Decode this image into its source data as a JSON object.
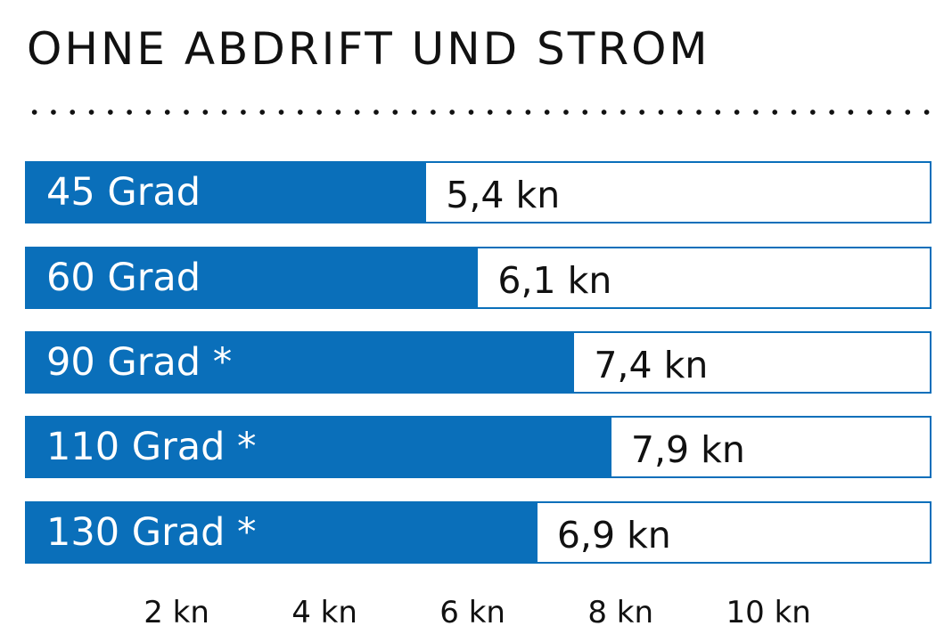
{
  "chart_data": {
    "type": "bar",
    "orientation": "horizontal",
    "title": "OHNE ABDRIFT UND STROM",
    "categories": [
      "45 Grad",
      "60 Grad",
      "90 Grad *",
      "110 Grad *",
      "130 Grad *"
    ],
    "values": [
      5.4,
      6.1,
      7.4,
      7.9,
      6.9
    ],
    "value_labels": [
      "5,4 kn",
      "6,1 kn",
      "7,4 kn",
      "7,9 kn",
      "6,9 kn"
    ],
    "xlim": [
      0,
      12.25
    ],
    "xticks": [
      2,
      4,
      6,
      8,
      10
    ],
    "xtick_labels": [
      "2 kn",
      "4 kn",
      "6 kn",
      "8 kn",
      "10 kn"
    ],
    "xlabel": "",
    "ylabel": "",
    "grid": false,
    "bar_color": "#0a6fba"
  }
}
